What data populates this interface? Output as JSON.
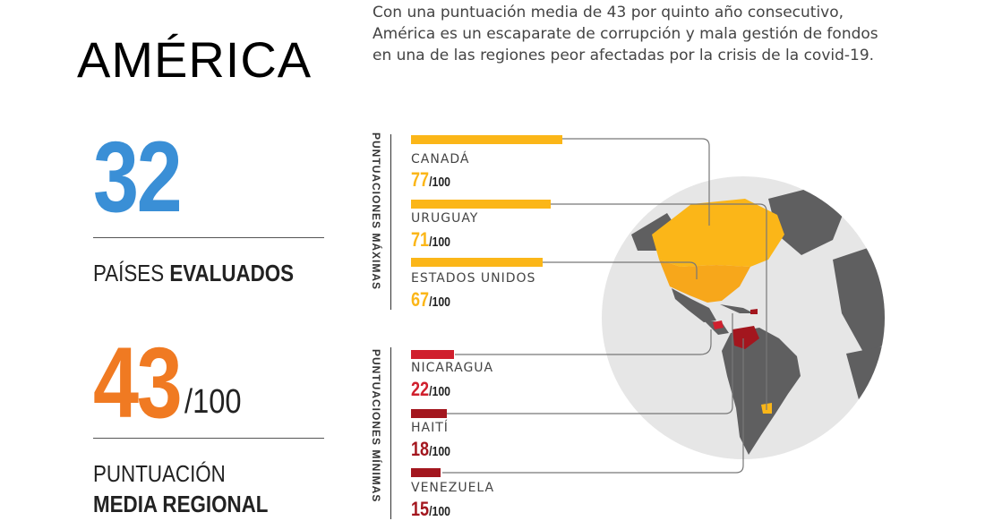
{
  "page": {
    "region": "AMÉRICA",
    "intro_lines": [
      "Con una puntuación media de 43 por quinto año consecutivo,",
      "América es un escaparate de corrupción y mala gestión de fondos",
      "en una de las regiones peor afectadas por la crisis de la covid-19."
    ]
  },
  "stats": {
    "countries_value": "32",
    "countries_label_a": "PAÍSES ",
    "countries_label_b": "EVALUADOS",
    "average_value": "43",
    "average_suffix": "/100",
    "average_label_a": "PUNTUACIÓN",
    "average_label_b": "MEDIA REGIONAL"
  },
  "groups": {
    "max_label": "PUNTUACIONES MÁXIMAS",
    "min_label": "PUNTUACIONES MÍNIMAS"
  },
  "chart_data": {
    "type": "bar",
    "scale_max": 100,
    "series": [
      {
        "name": "PUNTUACIONES MÁXIMAS",
        "color": "#fbb618",
        "items": [
          {
            "country": "CANADÁ",
            "score": "77",
            "value": 77,
            "denominator": "/100"
          },
          {
            "country": "URUGUAY",
            "score": "71",
            "value": 71,
            "denominator": "/100"
          },
          {
            "country": "ESTADOS UNIDOS",
            "score": "67",
            "value": 67,
            "denominator": "/100"
          }
        ]
      },
      {
        "name": "PUNTUACIONES MÍNIMAS",
        "color": "#d0202e",
        "items": [
          {
            "country": "NICARAGUA",
            "score": "22",
            "value": 22,
            "denominator": "/100"
          },
          {
            "country": "HAITÍ",
            "score": "18",
            "value": 18,
            "denominator": "/100"
          },
          {
            "country": "VENEZUELA",
            "score": "15",
            "value": 15,
            "denominator": "/100"
          }
        ]
      }
    ]
  },
  "colors": {
    "blue_stat": "#3a8fd6",
    "orange_stat": "#f07a22",
    "high_bar": "#fbb618",
    "low_bar_1": "#d0202e",
    "low_bar_2": "#a3161e",
    "globe_bg": "#e6e6e6",
    "land_other": "#5f5f60"
  }
}
